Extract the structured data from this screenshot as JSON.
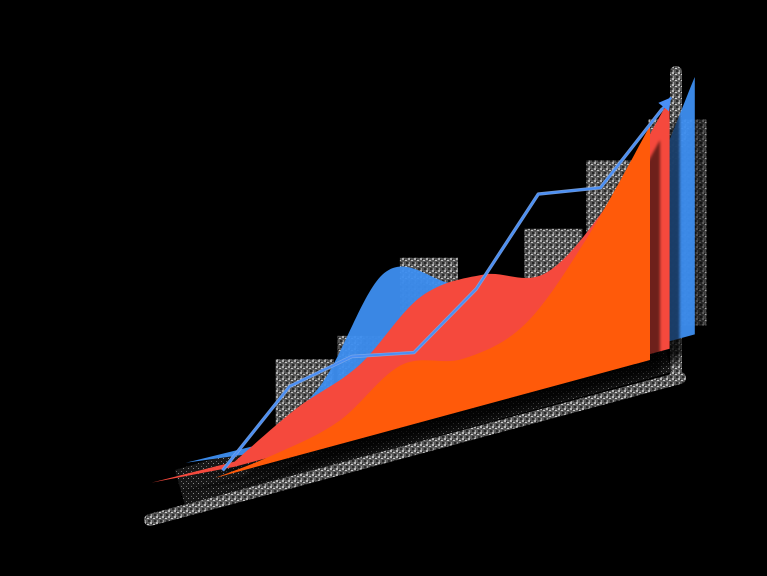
{
  "chart_data": {
    "type": "area",
    "style": "isometric-3d",
    "title": "",
    "xlabel": "",
    "ylabel": "",
    "grid": false,
    "legend": "none",
    "x": [
      1,
      2,
      3,
      4,
      5,
      6,
      7,
      8
    ],
    "ylim": [
      0,
      10
    ],
    "bars": {
      "name": "",
      "color": "#9a9a9a",
      "values": [
        4.2,
        4.6,
        8.4,
        5.5,
        8.1,
        11.3,
        12.8,
        0
      ]
    },
    "series": [
      {
        "key": "blue",
        "color": "#3d8ef0",
        "values": [
          0.3,
          2.0,
          5.6,
          4.6,
          2.9,
          3.0,
          5.0,
          9.9
        ]
      },
      {
        "key": "red",
        "color": "#f5493d",
        "values": [
          0.2,
          1.6,
          2.6,
          4.6,
          4.8,
          4.2,
          6.2,
          9.6
        ]
      },
      {
        "key": "orange",
        "color": "#ff5a0a",
        "values": [
          0.0,
          0.3,
          0.9,
          2.4,
          2.0,
          2.7,
          5.4,
          9.0
        ]
      }
    ],
    "trend_line": {
      "color": "#4a8ff5",
      "values": [
        0.4,
        2.6,
        3.1,
        2.6,
        4.4,
        7.4,
        7.0,
        9.4
      ]
    }
  }
}
